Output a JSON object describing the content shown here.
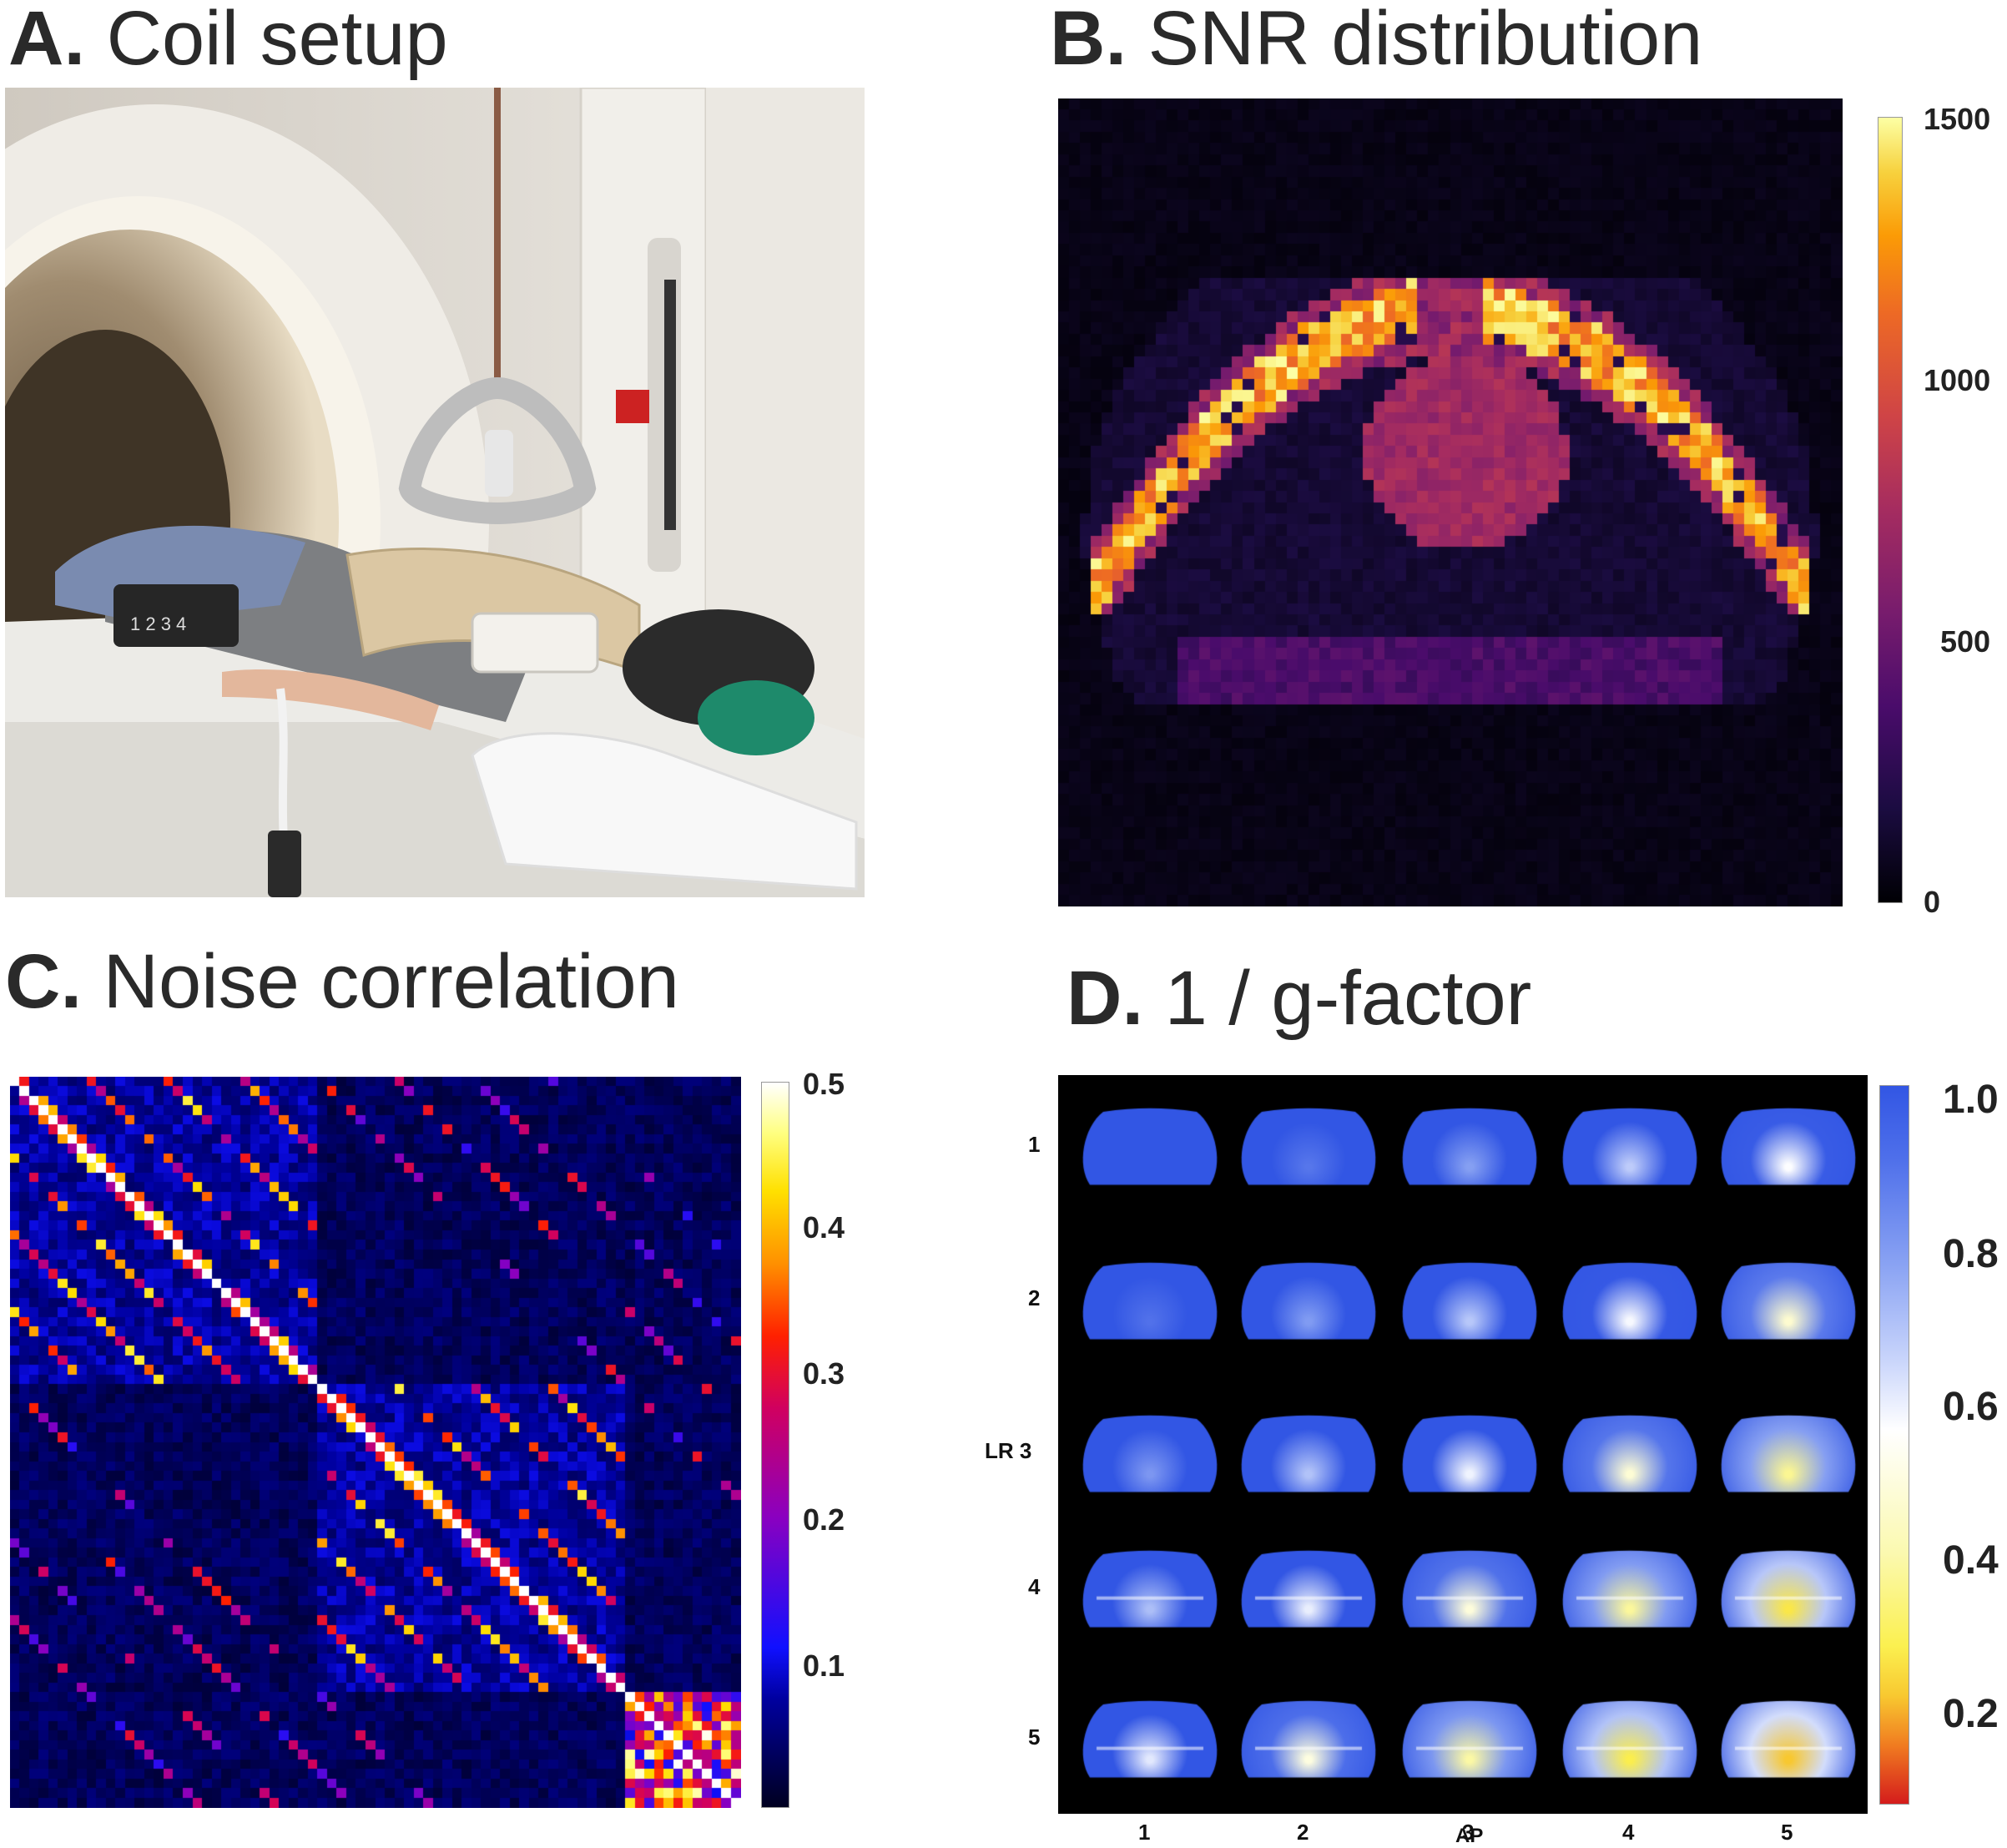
{
  "panels": {
    "a": {
      "letter": "A.",
      "title": "Coil setup",
      "coil_label": "1 2 3 4"
    },
    "b": {
      "letter": "B.",
      "title": "SNR distribution",
      "colorbar_ticks": [
        "1500",
        "1000",
        "500",
        "0"
      ]
    },
    "c": {
      "letter": "C.",
      "title": "Noise correlation",
      "colorbar_ticks": [
        "0.5",
        "0.4",
        "0.3",
        "0.2",
        "0.1"
      ]
    },
    "d": {
      "letter": "D.",
      "title": "1 / g-factor",
      "colorbar_ticks": [
        "1.0",
        "0.8",
        "0.6",
        "0.4",
        "0.2"
      ],
      "row_labels": [
        "1",
        "2",
        "LR 3",
        "4",
        "5"
      ],
      "col_labels": [
        "1",
        "2",
        "3",
        "4",
        "5"
      ],
      "xlabel": "AP"
    }
  },
  "colors": {
    "title_text": "#2a2a2a",
    "background_map": "#000000",
    "inferno_low": "#000004",
    "inferno_mid": "#b53679",
    "inferno_high": "#fcffa4",
    "gfactor_high": "#3a5fe6",
    "gfactor_mid": "#ffffff",
    "gfactor_low": "#d22020"
  }
}
